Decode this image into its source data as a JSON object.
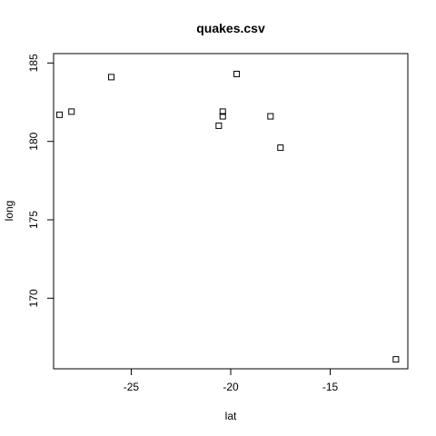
{
  "chart_data": {
    "type": "scatter",
    "title": "quakes.csv",
    "xlabel": "lat",
    "ylabel": "long",
    "xlim": [
      -28.9,
      -11.1
    ],
    "ylim": [
      165.5,
      185.6
    ],
    "x_ticks": [
      -25,
      -20,
      -15
    ],
    "y_ticks": [
      170,
      175,
      180,
      185
    ],
    "grid": false,
    "marker": "open-square",
    "points": [
      {
        "x": -28.6,
        "y": 181.7
      },
      {
        "x": -28.0,
        "y": 181.9
      },
      {
        "x": -26.0,
        "y": 184.1
      },
      {
        "x": -20.6,
        "y": 181.0
      },
      {
        "x": -20.4,
        "y": 181.9
      },
      {
        "x": -20.4,
        "y": 181.6
      },
      {
        "x": -19.7,
        "y": 184.3
      },
      {
        "x": -18.0,
        "y": 181.6
      },
      {
        "x": -17.5,
        "y": 179.6
      },
      {
        "x": -11.7,
        "y": 166.1
      }
    ]
  }
}
